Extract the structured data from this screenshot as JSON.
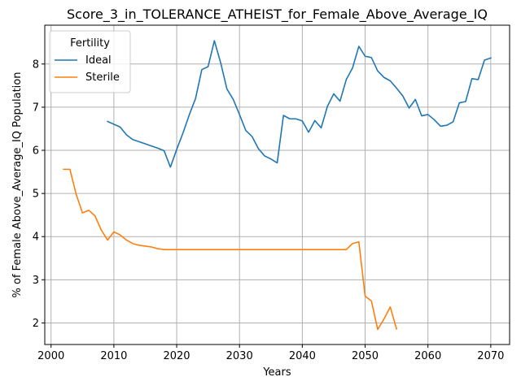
{
  "chart_data": {
    "type": "line",
    "title": "Score_3_in_TOLERANCE_ATHEIST_for_Female_Above_Average_IQ",
    "xlabel": "Years",
    "ylabel": "% of Female Above_Average_IQ Population",
    "xlim": [
      1999,
      2073
    ],
    "ylim": [
      1.5,
      8.9
    ],
    "xticks": [
      2000,
      2010,
      2020,
      2030,
      2040,
      2050,
      2060,
      2070
    ],
    "yticks": [
      2,
      3,
      4,
      5,
      6,
      7,
      8
    ],
    "grid": true,
    "legend": {
      "title": "Fertility",
      "placement": "top-left"
    },
    "series": [
      {
        "name": "Ideal",
        "color": "#1f77b4",
        "x": [
          2009,
          2011,
          2012,
          2013,
          2014,
          2015,
          2016,
          2017,
          2018,
          2019,
          2020,
          2021,
          2022,
          2023,
          2024,
          2025,
          2026,
          2027,
          2028,
          2029,
          2030,
          2031,
          2032,
          2033,
          2034,
          2035,
          2036,
          2037,
          2038,
          2039,
          2040,
          2041,
          2042,
          2043,
          2044,
          2045,
          2046,
          2047,
          2048,
          2049,
          2050,
          2051,
          2052,
          2053,
          2054,
          2055,
          2056,
          2057,
          2058,
          2059,
          2060,
          2061,
          2062,
          2063,
          2064,
          2065,
          2066,
          2067,
          2068,
          2069,
          2070
        ],
        "values": [
          6.67,
          6.54,
          6.36,
          6.25,
          6.2,
          6.15,
          6.1,
          6.05,
          5.99,
          5.61,
          6.02,
          6.4,
          6.82,
          7.2,
          7.87,
          7.94,
          8.54,
          8.03,
          7.42,
          7.18,
          6.83,
          6.46,
          6.32,
          6.04,
          5.87,
          5.8,
          5.71,
          6.81,
          6.73,
          6.73,
          6.68,
          6.42,
          6.69,
          6.52,
          7.02,
          7.31,
          7.14,
          7.64,
          7.91,
          8.41,
          8.18,
          8.15,
          7.84,
          7.69,
          7.61,
          7.44,
          7.26,
          6.98,
          7.18,
          6.8,
          6.83,
          6.71,
          6.56,
          6.58,
          6.66,
          7.1,
          7.13,
          7.66,
          7.64,
          8.09,
          8.14
        ]
      },
      {
        "name": "Sterile",
        "color": "#ff7f0e",
        "x": [
          2002,
          2003,
          2004,
          2005,
          2006,
          2007,
          2008,
          2009,
          2010,
          2011,
          2012,
          2013,
          2014,
          2015,
          2016,
          2017,
          2018,
          2019,
          2020,
          2021,
          2022,
          2023,
          2024,
          2025,
          2026,
          2027,
          2028,
          2029,
          2030,
          2031,
          2032,
          2033,
          2034,
          2035,
          2036,
          2037,
          2038,
          2039,
          2040,
          2041,
          2042,
          2043,
          2044,
          2045,
          2046,
          2047,
          2048,
          2049,
          2050,
          2051,
          2052,
          2053,
          2054,
          2055
        ],
        "values": [
          5.56,
          5.56,
          4.98,
          4.55,
          4.61,
          4.48,
          4.15,
          3.92,
          4.11,
          4.04,
          3.92,
          3.84,
          3.8,
          3.78,
          3.76,
          3.72,
          3.7,
          3.7,
          3.7,
          3.7,
          3.7,
          3.7,
          3.7,
          3.7,
          3.7,
          3.7,
          3.7,
          3.7,
          3.7,
          3.7,
          3.7,
          3.7,
          3.7,
          3.7,
          3.7,
          3.7,
          3.7,
          3.7,
          3.7,
          3.7,
          3.7,
          3.7,
          3.7,
          3.7,
          3.7,
          3.7,
          3.84,
          3.88,
          2.62,
          2.51,
          1.85,
          2.09,
          2.37,
          1.86
        ]
      }
    ]
  }
}
